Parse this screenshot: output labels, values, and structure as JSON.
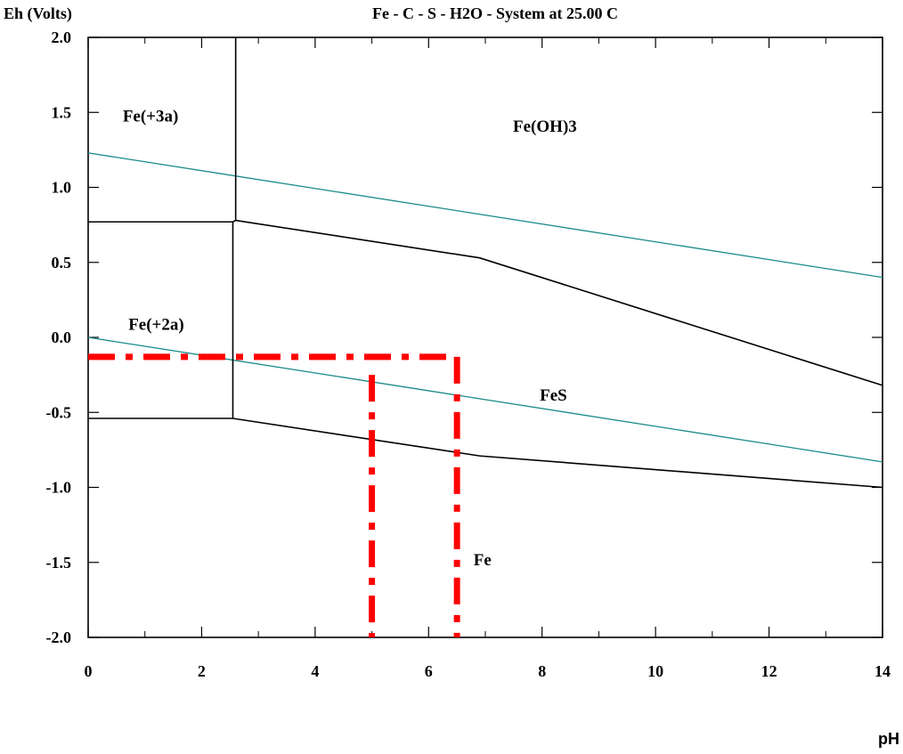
{
  "chart_data": {
    "type": "line",
    "title": "Fe - C - S - H2O - System at 25.00 C",
    "ylabel": "Eh (Volts)",
    "xlabel": "pH",
    "xlim": [
      0,
      14
    ],
    "ylim": [
      -2.0,
      2.0
    ],
    "x_ticks": [
      0,
      2,
      4,
      6,
      8,
      10,
      12,
      14
    ],
    "x_tick_labels": [
      "0",
      "2",
      "4",
      "6",
      "8",
      "10",
      "12",
      "14"
    ],
    "y_ticks": [
      2.0,
      1.5,
      1.0,
      0.5,
      0.0,
      -0.5,
      -1.0,
      -1.5,
      -2.0
    ],
    "y_tick_labels": [
      "2.0",
      "1.5",
      "1.0",
      "0.5",
      "0.0",
      "-0.5",
      "-1.0",
      "-1.5",
      "-2.0"
    ],
    "colors": {
      "boundary": "#000000",
      "water": "#1a8a8a",
      "marker": "#ff0000"
    },
    "water_lines": [
      {
        "x": [
          0,
          14
        ],
        "y": [
          1.23,
          0.4
        ]
      },
      {
        "x": [
          0,
          14
        ],
        "y": [
          0.0,
          -0.83
        ]
      }
    ],
    "boundaries": [
      {
        "x": [
          0,
          2.55
        ],
        "y": [
          0.77,
          0.77
        ]
      },
      {
        "x": [
          2.6,
          2.6
        ],
        "y": [
          0.78,
          2.0
        ]
      },
      {
        "x": [
          2.55,
          2.55
        ],
        "y": [
          0.77,
          -0.54
        ]
      },
      {
        "x": [
          2.6,
          6.9,
          14
        ],
        "y": [
          0.78,
          0.53,
          -0.32
        ]
      },
      {
        "x": [
          0,
          2.55,
          6.9,
          14
        ],
        "y": [
          -0.54,
          -0.54,
          -0.79,
          -1.0
        ]
      },
      {
        "x": [
          2.55,
          2.6
        ],
        "y": [
          0.77,
          0.78
        ]
      }
    ],
    "reference_lines": [
      {
        "x": [
          0,
          6.5
        ],
        "y": [
          -0.13,
          -0.13
        ]
      },
      {
        "x": [
          6.5,
          6.5
        ],
        "y": [
          -0.13,
          -2.0
        ]
      },
      {
        "x": [
          5.0,
          5.0
        ],
        "y": [
          -0.25,
          -2.0
        ]
      }
    ],
    "regions": [
      {
        "label": "Fe(+3a)",
        "x": 1.1,
        "y": 1.44
      },
      {
        "label": "Fe(OH)3",
        "x": 8.05,
        "y": 1.37
      },
      {
        "label": "Fe(+2a)",
        "x": 1.2,
        "y": 0.05
      },
      {
        "label": "FeS",
        "x": 8.2,
        "y": -0.42
      },
      {
        "label": "Fe",
        "x": 6.95,
        "y": -1.52
      }
    ]
  }
}
